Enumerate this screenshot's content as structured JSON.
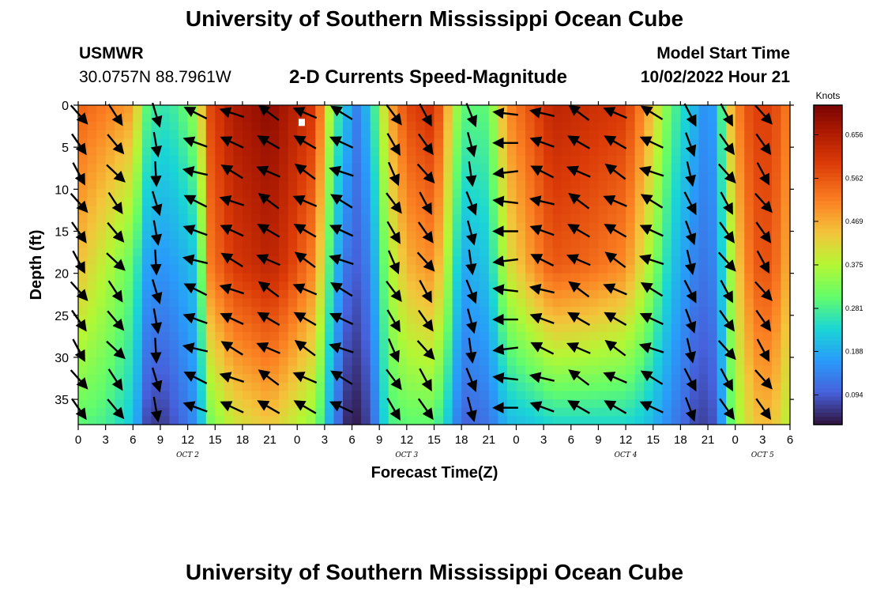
{
  "header": {
    "title": "University of Southern Mississippi Ocean Cube",
    "station": "USMWR",
    "coords": "30.0757N  88.7961W",
    "model_start_label": "Model Start Time",
    "model_start_value": "10/02/2022 Hour 21",
    "footer_title": "University of Southern Mississippi Ocean Cube"
  },
  "chart_data": {
    "type": "heatmap",
    "title": "2-D Currents Speed-Magnitude",
    "xlabel": "Forecast Time(Z)",
    "ylabel": "Depth (ft)",
    "colorbar_label": "Knots",
    "colorbar_ticks": [
      0.094,
      0.188,
      0.281,
      0.375,
      0.469,
      0.562,
      0.656
    ],
    "colorbar_range": [
      0.03,
      0.72
    ],
    "ylim": [
      0,
      38
    ],
    "y_ticks": [
      0,
      5,
      10,
      15,
      20,
      25,
      30,
      35
    ],
    "xlim_hours": [
      0,
      78
    ],
    "x_tick_labels": [
      "0",
      "3",
      "6",
      "9",
      "12",
      "15",
      "18",
      "21",
      "0",
      "3",
      "6",
      "9",
      "12",
      "15",
      "18",
      "21",
      "0",
      "3",
      "6",
      "9",
      "12",
      "15",
      "18",
      "21",
      "0",
      "3",
      "6"
    ],
    "day_labels": [
      {
        "label": "OCT 2",
        "hour": 12
      },
      {
        "label": "OCT 3",
        "hour": 36
      },
      {
        "label": "OCT 4",
        "hour": 60
      },
      {
        "label": "OCT 5",
        "hour": 75
      }
    ],
    "speed_profiles": {
      "hours": [
        0,
        3,
        6,
        7.5,
        9,
        11,
        13,
        14.5,
        17,
        21,
        23,
        26,
        28,
        29.5,
        30.5,
        32,
        34,
        36,
        39,
        40.5,
        42,
        45,
        47,
        50,
        52,
        56,
        60,
        62,
        65,
        67.5,
        69,
        70,
        71.5,
        73,
        75,
        77,
        78
      ],
      "top": [
        0.55,
        0.52,
        0.48,
        0.3,
        0.26,
        0.28,
        0.36,
        0.58,
        0.66,
        0.7,
        0.66,
        0.6,
        0.3,
        0.2,
        0.14,
        0.22,
        0.46,
        0.58,
        0.62,
        0.46,
        0.3,
        0.3,
        0.5,
        0.58,
        0.64,
        0.62,
        0.6,
        0.5,
        0.3,
        0.2,
        0.14,
        0.2,
        0.45,
        0.56,
        0.6,
        0.56,
        0.5
      ],
      "mid": [
        0.45,
        0.38,
        0.3,
        0.18,
        0.16,
        0.18,
        0.22,
        0.52,
        0.6,
        0.64,
        0.6,
        0.5,
        0.22,
        0.12,
        0.1,
        0.14,
        0.36,
        0.46,
        0.5,
        0.36,
        0.18,
        0.22,
        0.4,
        0.5,
        0.56,
        0.54,
        0.5,
        0.4,
        0.22,
        0.14,
        0.12,
        0.16,
        0.36,
        0.5,
        0.58,
        0.52,
        0.44
      ],
      "bottom": [
        0.3,
        0.28,
        0.22,
        0.08,
        0.06,
        0.1,
        0.16,
        0.32,
        0.4,
        0.44,
        0.4,
        0.34,
        0.14,
        0.05,
        0.04,
        0.08,
        0.28,
        0.3,
        0.3,
        0.22,
        0.1,
        0.12,
        0.2,
        0.22,
        0.24,
        0.24,
        0.24,
        0.22,
        0.14,
        0.08,
        0.07,
        0.1,
        0.3,
        0.4,
        0.46,
        0.42,
        0.36
      ]
    },
    "vector_hours": [
      0,
      4,
      8.5,
      13,
      17,
      21,
      25,
      29,
      34.5,
      38,
      43,
      47,
      51,
      55,
      59,
      63,
      67,
      71,
      75
    ],
    "vector_depths": [
      1,
      4.5,
      8,
      11.5,
      15,
      18.5,
      22,
      25.5,
      29,
      32.5,
      36
    ],
    "vector_angles_deg": [
      -55,
      -50,
      -80,
      160,
      155,
      150,
      150,
      155,
      -60,
      -55,
      -75,
      180,
      160,
      150,
      150,
      155,
      -70,
      -55,
      -55
    ],
    "marker_point": {
      "hour": 24.5,
      "depth": 2
    }
  }
}
